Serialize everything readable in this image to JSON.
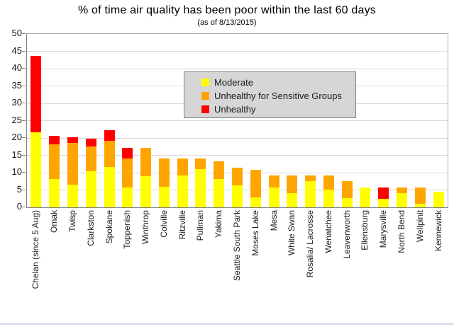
{
  "header": {
    "title": "% of time air quality has been poor within the last 60 days",
    "subtitle": "(as of 8/13/2015)"
  },
  "colors": {
    "moderate": "#ffff00",
    "unhealthy_sensitive": "#ffa500",
    "unhealthy": "#ff0000",
    "gridline": "#d9d9d9",
    "legend_bg": "#d6d6d6",
    "axis": "#808080"
  },
  "chart_data": {
    "type": "bar",
    "stacked": true,
    "title": "% of time air quality has been poor within the last 60 days",
    "subtitle": "(as of 8/13/2015)",
    "xlabel": "",
    "ylabel": "",
    "ylim": [
      0,
      50
    ],
    "yticks": [
      0,
      5,
      10,
      15,
      20,
      25,
      30,
      35,
      40,
      45,
      50
    ],
    "grid": "horizontal",
    "legend_position": "upper-center-inside",
    "categories": [
      "Chelan (since 5 Aug)",
      "Omak",
      "Twisp",
      "Clarkston",
      "Spokane",
      "Toppenish",
      "Winthrop",
      "Colville",
      "Ritzville",
      "Pullman",
      "Yakima",
      "Seattle South Park",
      "Moses Lake",
      "Mesa",
      "White Swan",
      "Rosalia/ Lacrosse",
      "Wenatchee",
      "Leavenworth",
      "Ellensburg",
      "Marysville",
      "North Bend",
      "Wellpinit",
      "Kennewick"
    ],
    "series": [
      {
        "name": "Moderate",
        "color": "#ffff00",
        "values": [
          21.7,
          8.1,
          6.5,
          10.4,
          11.6,
          5.8,
          9.0,
          6.0,
          9.1,
          11.0,
          8.1,
          6.3,
          2.9,
          5.7,
          4.1,
          7.5,
          5.2,
          2.7,
          5.8,
          2.5,
          4.1,
          1.0,
          4.4
        ]
      },
      {
        "name": "Unhealthy for Sensitive Groups",
        "color": "#ffa500",
        "values": [
          0,
          10.0,
          12.0,
          7.2,
          7.5,
          8.2,
          8.2,
          8.1,
          5.0,
          3.1,
          5.1,
          5.1,
          7.9,
          3.4,
          5.0,
          1.6,
          3.9,
          4.8,
          0,
          0,
          1.7,
          4.8,
          0
        ]
      },
      {
        "name": "Unhealthy",
        "color": "#ff0000",
        "values": [
          22.0,
          2.6,
          1.7,
          2.1,
          3.1,
          3.2,
          0,
          0,
          0,
          0,
          0,
          0,
          0,
          0,
          0,
          0,
          0,
          0,
          0,
          3.3,
          0,
          0,
          0
        ]
      }
    ]
  }
}
